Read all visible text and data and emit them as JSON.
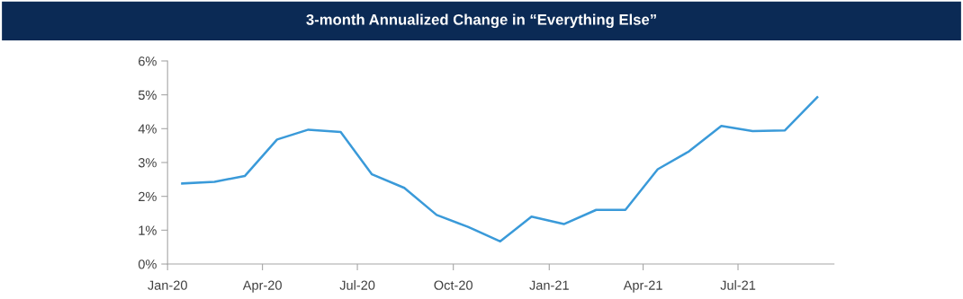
{
  "chart_data": {
    "type": "line",
    "title": "3-month Annualized Change in “Everything Else”",
    "x": [
      "2020-01-15",
      "2020-02-15",
      "2020-03-15",
      "2020-04-15",
      "2020-05-15",
      "2020-06-15",
      "2020-07-15",
      "2020-08-15",
      "2020-09-15",
      "2020-10-15",
      "2020-11-15",
      "2020-12-15",
      "2021-01-15",
      "2021-02-15",
      "2021-03-15",
      "2021-04-15",
      "2021-05-15",
      "2021-06-15",
      "2021-07-15",
      "2021-08-15",
      "2021-09-15"
    ],
    "series": [
      {
        "color": "#3a9ad9",
        "values": [
          2.38,
          2.43,
          2.6,
          3.68,
          3.97,
          3.9,
          2.65,
          2.25,
          1.45,
          1.1,
          0.67,
          1.4,
          1.18,
          1.6,
          1.6,
          2.8,
          3.33,
          4.08,
          3.93,
          3.95,
          4.93
        ]
      }
    ],
    "xlim": [
      "2020-01-01",
      "2021-10-01"
    ],
    "xticks": [
      {
        "value": "2020-01-01",
        "label": "Jan-20"
      },
      {
        "value": "2020-04-01",
        "label": "Apr-20"
      },
      {
        "value": "2020-07-01",
        "label": "Jul-20"
      },
      {
        "value": "2020-10-01",
        "label": "Oct-20"
      },
      {
        "value": "2021-01-01",
        "label": "Jan-21"
      },
      {
        "value": "2021-04-01",
        "label": "Apr-21"
      },
      {
        "value": "2021-07-01",
        "label": "Jul-21"
      }
    ],
    "ylim": [
      0,
      6
    ],
    "yticks": [
      {
        "value": 0,
        "label": "0%"
      },
      {
        "value": 1,
        "label": "1%"
      },
      {
        "value": 2,
        "label": "2%"
      },
      {
        "value": 3,
        "label": "3%"
      },
      {
        "value": 4,
        "label": "4%"
      },
      {
        "value": 5,
        "label": "5%"
      },
      {
        "value": 6,
        "label": "6%"
      }
    ],
    "grid": false,
    "legend": false,
    "marker": "none",
    "line_style": "solid"
  }
}
